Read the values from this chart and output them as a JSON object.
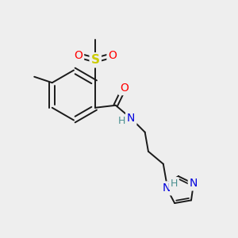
{
  "bg_color": "#eeeeee",
  "bond_color": "#1a1a1a",
  "bond_width": 1.4,
  "atom_colors": {
    "O": "#ff0000",
    "N": "#0000dd",
    "S": "#cccc00",
    "H_label": "#4a9090"
  },
  "fig_size": [
    3.0,
    3.0
  ],
  "dpi": 100
}
